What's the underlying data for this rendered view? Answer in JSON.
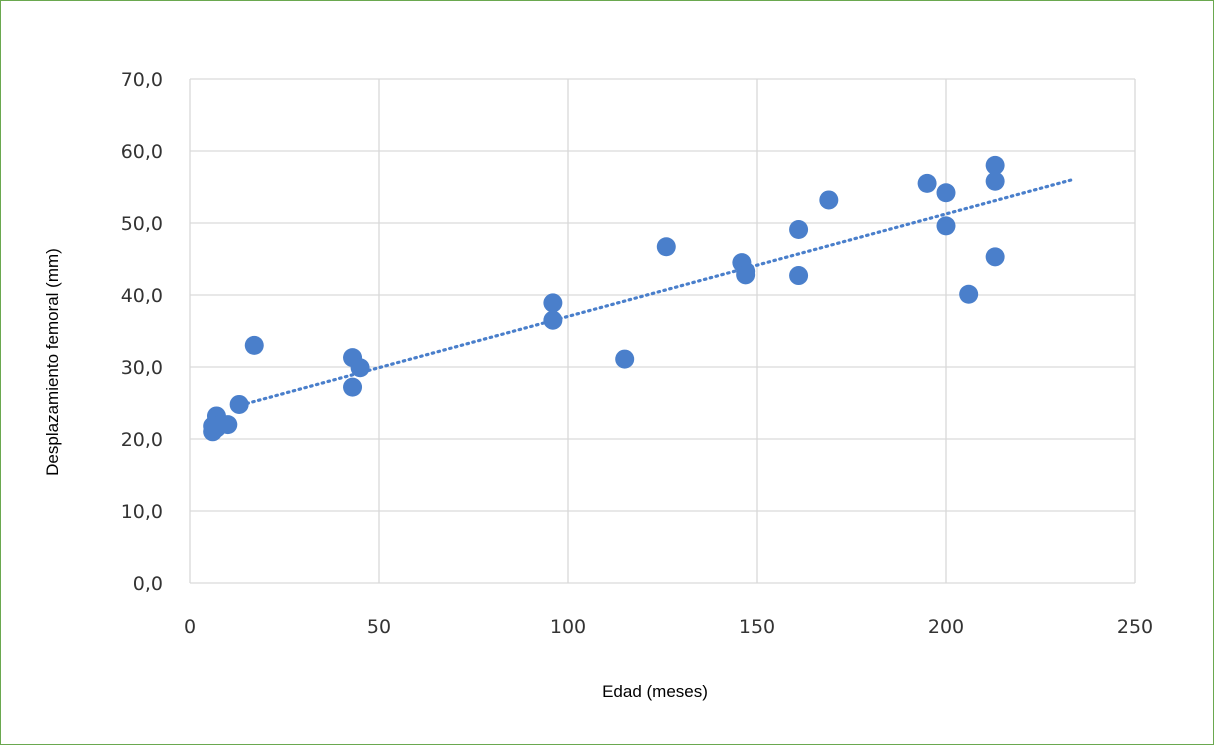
{
  "chart_data": {
    "type": "scatter",
    "title": "",
    "xlabel": "Edad (meses)",
    "ylabel": "Desplazamiento femoral (mm)",
    "xlim": [
      0,
      250
    ],
    "ylim": [
      0,
      70
    ],
    "x_ticks": [
      "0",
      "50",
      "100",
      "150",
      "200",
      "250"
    ],
    "y_ticks": [
      "0,0",
      "10,0",
      "20,0",
      "30,0",
      "40,0",
      "50,0",
      "60,0",
      "70,0"
    ],
    "grid": true,
    "legend": "none",
    "colors": {
      "points": "#4a7fcb",
      "trendline": "#4a7fcb",
      "grid": "#d9d9d9",
      "border": "#6aa84f"
    },
    "series": [
      {
        "values": [
          {
            "x": 6,
            "y": 21.0
          },
          {
            "x": 6,
            "y": 21.8
          },
          {
            "x": 7,
            "y": 21.5
          },
          {
            "x": 7,
            "y": 23.2
          },
          {
            "x": 8,
            "y": 22.0
          },
          {
            "x": 10,
            "y": 22.0
          },
          {
            "x": 13,
            "y": 24.8
          },
          {
            "x": 17,
            "y": 33.0
          },
          {
            "x": 43,
            "y": 31.3
          },
          {
            "x": 43,
            "y": 27.2
          },
          {
            "x": 45,
            "y": 29.9
          },
          {
            "x": 96,
            "y": 38.9
          },
          {
            "x": 96,
            "y": 36.5
          },
          {
            "x": 115,
            "y": 31.1
          },
          {
            "x": 126,
            "y": 46.7
          },
          {
            "x": 146,
            "y": 44.5
          },
          {
            "x": 147,
            "y": 43.3
          },
          {
            "x": 147,
            "y": 42.8
          },
          {
            "x": 161,
            "y": 49.1
          },
          {
            "x": 161,
            "y": 42.7
          },
          {
            "x": 169,
            "y": 53.2
          },
          {
            "x": 195,
            "y": 55.5
          },
          {
            "x": 200,
            "y": 54.2
          },
          {
            "x": 200,
            "y": 49.6
          },
          {
            "x": 206,
            "y": 40.1
          },
          {
            "x": 213,
            "y": 58.0
          },
          {
            "x": 213,
            "y": 55.8
          },
          {
            "x": 213,
            "y": 45.3
          }
        ]
      }
    ],
    "trendline": {
      "type": "linear",
      "style": "dotted",
      "x": [
        12,
        234
      ],
      "y": [
        24.5,
        56.1
      ]
    }
  }
}
